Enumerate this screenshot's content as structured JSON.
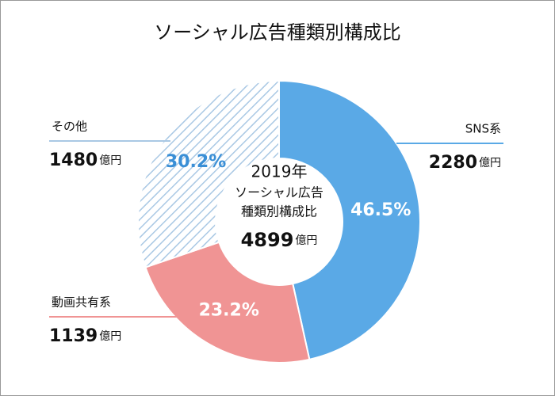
{
  "chart_data": {
    "type": "donut",
    "title": "ソーシャル広告種類別構成比",
    "categories": [
      "SNS系",
      "動画共有系",
      "その他"
    ],
    "values": [
      46.5,
      23.2,
      30.2
    ],
    "value_labels": [
      "46.5%",
      "23.2%",
      "30.2%"
    ],
    "colors": [
      "#5aa9e6",
      "#f09494",
      "#a9c8e4"
    ],
    "patterns": [
      "solid",
      "solid",
      "hatched"
    ],
    "amounts": [
      2280,
      1139,
      1480
    ],
    "unit": "億円",
    "center_text": [
      "2019年",
      "ソーシャル広告",
      "種類別構成比"
    ],
    "total": 4899
  }
}
